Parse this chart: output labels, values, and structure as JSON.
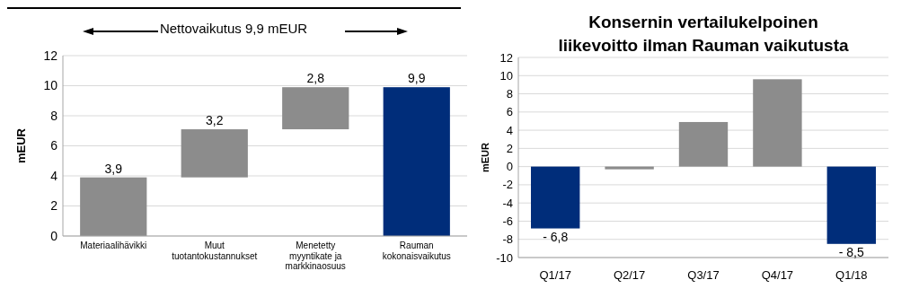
{
  "chart_data": [
    {
      "type": "bar",
      "title": "Nettovaikutus 9,9 mEUR",
      "ylabel": "mEUR",
      "categories": [
        "Materiaalihävikki",
        "Muut tuotantokustannukset",
        "Menetetty myyntikate ja markkinaosuus",
        "Rauman kokonaisvaikutus"
      ],
      "values": [
        3.9,
        3.2,
        2.8,
        9.9
      ],
      "base": [
        0,
        3.9,
        7.1,
        0
      ],
      "colors": [
        "#8c8c8c",
        "#8c8c8c",
        "#8c8c8c",
        "#002d7a"
      ],
      "value_labels": [
        "3,9",
        "3,2",
        "2,8",
        "9,9"
      ],
      "ylim": [
        0,
        12
      ],
      "yticks": [
        0,
        2,
        4,
        6,
        8,
        10,
        12
      ],
      "grid": "y"
    },
    {
      "type": "bar",
      "title": "Konsernin vertailukelpoinen liikevoitto ilman Rauman vaikutusta",
      "ylabel": "mEUR",
      "categories": [
        "Q1/17",
        "Q2/17",
        "Q3/17",
        "Q4/17",
        "Q1/18"
      ],
      "values": [
        -6.8,
        -0.3,
        4.9,
        9.6,
        -8.5
      ],
      "colors": [
        "#002d7a",
        "#8c8c8c",
        "#8c8c8c",
        "#8c8c8c",
        "#002d7a"
      ],
      "value_labels": [
        "- 6,8",
        null,
        null,
        null,
        "- 8,5"
      ],
      "ylim": [
        -10,
        12
      ],
      "yticks": [
        -10,
        -8,
        -6,
        -4,
        -2,
        0,
        2,
        4,
        6,
        8,
        10,
        12
      ],
      "grid": "y"
    }
  ]
}
